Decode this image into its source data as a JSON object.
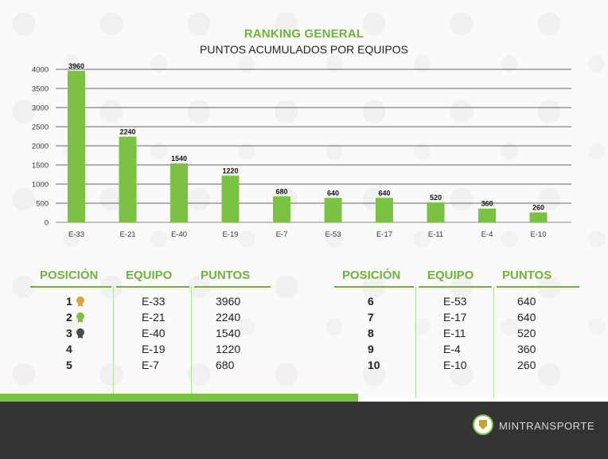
{
  "header": {
    "title": "RANKING GENERAL",
    "subtitle": "PUNTOS ACUMULADOS POR EQUIPOS"
  },
  "chart_data": {
    "type": "bar",
    "categories": [
      "E-33",
      "E-21",
      "E-40",
      "E-19",
      "E-7",
      "E-53",
      "E-17",
      "E-11",
      "E-4",
      "E-10"
    ],
    "values": [
      3960,
      2240,
      1540,
      1220,
      680,
      640,
      640,
      520,
      360,
      260
    ],
    "yticks": [
      0,
      500,
      1000,
      1500,
      2000,
      2500,
      3000,
      3500,
      4000
    ],
    "ylim": [
      0,
      4000
    ],
    "grid": true,
    "bar_color": "#7cc242"
  },
  "tables": {
    "headers": {
      "posicion": "POSICIÓN",
      "equipo": "EQUIPO",
      "puntos": "PUNTOS"
    },
    "left": [
      {
        "pos": "1",
        "equipo": "E-33",
        "puntos": "3960",
        "medal": "gold"
      },
      {
        "pos": "2",
        "equipo": "E-21",
        "puntos": "2240",
        "medal": "green"
      },
      {
        "pos": "3",
        "equipo": "E-40",
        "puntos": "1540",
        "medal": "dark"
      },
      {
        "pos": "4",
        "equipo": "E-19",
        "puntos": "1220",
        "medal": ""
      },
      {
        "pos": "5",
        "equipo": "E-7",
        "puntos": "680",
        "medal": ""
      }
    ],
    "right": [
      {
        "pos": "6",
        "equipo": "E-53",
        "puntos": "640"
      },
      {
        "pos": "7",
        "equipo": "E-17",
        "puntos": "640"
      },
      {
        "pos": "8",
        "equipo": "E-11",
        "puntos": "520"
      },
      {
        "pos": "9",
        "equipo": "E-4",
        "puntos": "360"
      },
      {
        "pos": "10",
        "equipo": "E-10",
        "puntos": "260"
      }
    ]
  },
  "colors": {
    "accent": "#6fb43a",
    "footer": "#333333",
    "medal_gold": "#d9a441",
    "medal_green": "#7cc242",
    "medal_dark": "#4a4a4a"
  },
  "footer": {
    "brand": "MINTRANSPORTE",
    "logo_icon": "colombia-coat-of-arms-icon"
  }
}
